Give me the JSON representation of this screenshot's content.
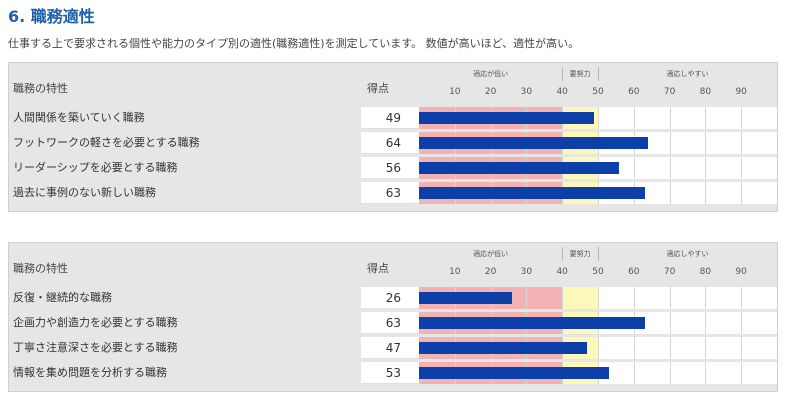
{
  "title": "6. 職務適性",
  "description": "仕事する上で要求される個性や能力のタイプ別の適性(職務適性)を測定しています。 数値が高いほど、適性が高い。",
  "colors": {
    "title": "#1f5fa8",
    "bar": "#0c3fa8",
    "low_zone": "#f3b2b4",
    "effort_zone": "#fbf8b9",
    "header_bg": "#e6e6e6"
  },
  "chart_data": [
    {
      "type": "bar",
      "orientation": "horizontal",
      "name_header": "職務の特性",
      "score_header": "得点",
      "zones": [
        {
          "label": "適応が低い",
          "from": 0,
          "to": 40
        },
        {
          "label": "要努力",
          "from": 40,
          "to": 50
        },
        {
          "label": "適応しやすい",
          "from": 50,
          "to": 100
        }
      ],
      "ticks": [
        "10",
        "20",
        "30",
        "40",
        "50",
        "60",
        "70",
        "80",
        "90"
      ],
      "xlim": [
        0,
        100
      ],
      "categories": [
        "人間関係を築いていく職務",
        "フットワークの軽さを必要とする職務",
        "リーダーシップを必要とする職務",
        "過去に事例のない新しい職務"
      ],
      "values": [
        49,
        64,
        56,
        63
      ]
    },
    {
      "type": "bar",
      "orientation": "horizontal",
      "name_header": "職務の特性",
      "score_header": "得点",
      "zones": [
        {
          "label": "適応が低い",
          "from": 0,
          "to": 40
        },
        {
          "label": "要努力",
          "from": 40,
          "to": 50
        },
        {
          "label": "適応しやすい",
          "from": 50,
          "to": 100
        }
      ],
      "ticks": [
        "10",
        "20",
        "30",
        "40",
        "50",
        "60",
        "70",
        "80",
        "90"
      ],
      "xlim": [
        0,
        100
      ],
      "categories": [
        "反復・継続的な職務",
        "企画力や創造力を必要とする職務",
        "丁寧さ注意深さを必要とする職務",
        "情報を集め問題を分析する職務"
      ],
      "values": [
        26,
        63,
        47,
        53
      ]
    }
  ]
}
